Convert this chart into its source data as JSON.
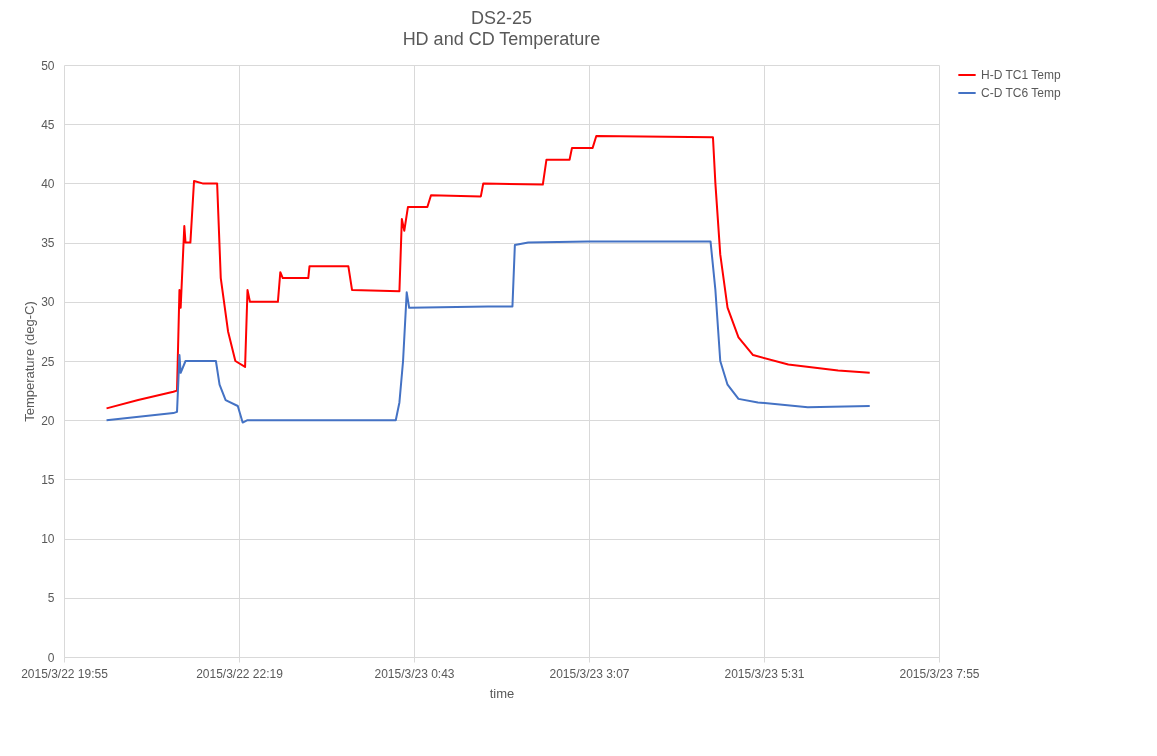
{
  "chart_data": {
    "type": "line",
    "title": "DS2-25",
    "subtitle": "HD and CD Temperature",
    "xlabel": "time",
    "ylabel": "Temperature (deg-C)",
    "xlim": [
      "2015-03-22T19:55",
      "2015-03-23T07:55"
    ],
    "xticks": [
      {
        "value": "2015-03-22T19:55",
        "label": "2015/3/22 19:55"
      },
      {
        "value": "2015-03-22T22:19",
        "label": "2015/3/22 22:19"
      },
      {
        "value": "2015-03-23T00:43",
        "label": "2015/3/23 0:43"
      },
      {
        "value": "2015-03-23T03:07",
        "label": "2015/3/23 3:07"
      },
      {
        "value": "2015-03-23T05:31",
        "label": "2015/3/23 5:31"
      },
      {
        "value": "2015-03-23T07:55",
        "label": "2015/3/23 7:55"
      }
    ],
    "ylim": [
      0,
      50
    ],
    "yticks": [
      0,
      5,
      10,
      15,
      20,
      25,
      30,
      35,
      40,
      45,
      50
    ],
    "grid": true,
    "legend": "right",
    "marker": "none",
    "line_style": "solid",
    "series": [
      {
        "name": "H-D TC1 Temp",
        "color": "#ff0000",
        "x": [
          "2015-03-22T20:30",
          "2015-03-22T20:56",
          "2015-03-22T21:25",
          "2015-03-22T21:28",
          "2015-03-22T21:30",
          "2015-03-22T21:31",
          "2015-03-22T21:34",
          "2015-03-22T21:35",
          "2015-03-22T21:39",
          "2015-03-22T21:42",
          "2015-03-22T21:49",
          "2015-03-22T22:01",
          "2015-03-22T22:04",
          "2015-03-22T22:10",
          "2015-03-22T22:16",
          "2015-03-22T22:24",
          "2015-03-22T22:26",
          "2015-03-22T22:28",
          "2015-03-22T22:51",
          "2015-03-22T22:53",
          "2015-03-22T22:55",
          "2015-03-22T23:16",
          "2015-03-22T23:17",
          "2015-03-22T23:49",
          "2015-03-22T23:52",
          "2015-03-23T00:31",
          "2015-03-23T00:33",
          "2015-03-23T00:35",
          "2015-03-23T00:38",
          "2015-03-23T00:54",
          "2015-03-23T00:57",
          "2015-03-23T01:38",
          "2015-03-23T01:40",
          "2015-03-23T02:29",
          "2015-03-23T02:32",
          "2015-03-23T02:51",
          "2015-03-23T02:53",
          "2015-03-23T03:10",
          "2015-03-23T03:13",
          "2015-03-23T04:49",
          "2015-03-23T04:51",
          "2015-03-23T04:55",
          "2015-03-23T05:01",
          "2015-03-23T05:10",
          "2015-03-23T05:22",
          "2015-03-23T05:51",
          "2015-03-23T06:32",
          "2015-03-23T06:58"
        ],
        "values": [
          21.0,
          21.7,
          22.4,
          22.5,
          31,
          29.5,
          36.4,
          35,
          35,
          40.2,
          40,
          40,
          32,
          27.5,
          25,
          24.5,
          31,
          30,
          30,
          32.5,
          32,
          32,
          33,
          33,
          31,
          30.9,
          37,
          36,
          38,
          38,
          39,
          38.9,
          40,
          39.9,
          42,
          42,
          43,
          43,
          44,
          43.9,
          40,
          34,
          29.5,
          27,
          25.5,
          24.7,
          24.2,
          24.0
        ]
      },
      {
        "name": "C-D TC6 Temp",
        "color": "#4472c4",
        "x": [
          "2015-03-22T20:30",
          "2015-03-22T21:25",
          "2015-03-22T21:28",
          "2015-03-22T21:30",
          "2015-03-22T21:31",
          "2015-03-22T21:35",
          "2015-03-22T22:00",
          "2015-03-22T22:03",
          "2015-03-22T22:08",
          "2015-03-22T22:18",
          "2015-03-22T22:22",
          "2015-03-22T22:26",
          "2015-03-22T23:32",
          "2015-03-23T00:28",
          "2015-03-23T00:31",
          "2015-03-23T00:34",
          "2015-03-23T00:37",
          "2015-03-23T00:39",
          "2015-03-23T01:44",
          "2015-03-23T02:04",
          "2015-03-23T02:06",
          "2015-03-23T02:17",
          "2015-03-23T03:06",
          "2015-03-23T04:47",
          "2015-03-23T04:51",
          "2015-03-23T04:55",
          "2015-03-23T05:01",
          "2015-03-23T05:10",
          "2015-03-23T05:26",
          "2015-03-23T06:07",
          "2015-03-23T06:58"
        ],
        "values": [
          20.0,
          20.6,
          20.7,
          25.5,
          24,
          25,
          25,
          23,
          21.7,
          21.2,
          19.8,
          20,
          20,
          20,
          21.5,
          25,
          30.8,
          29.5,
          29.6,
          29.6,
          34.8,
          35,
          35.1,
          35.1,
          31,
          25,
          23,
          21.8,
          21.5,
          21.1,
          21.2
        ]
      }
    ]
  }
}
